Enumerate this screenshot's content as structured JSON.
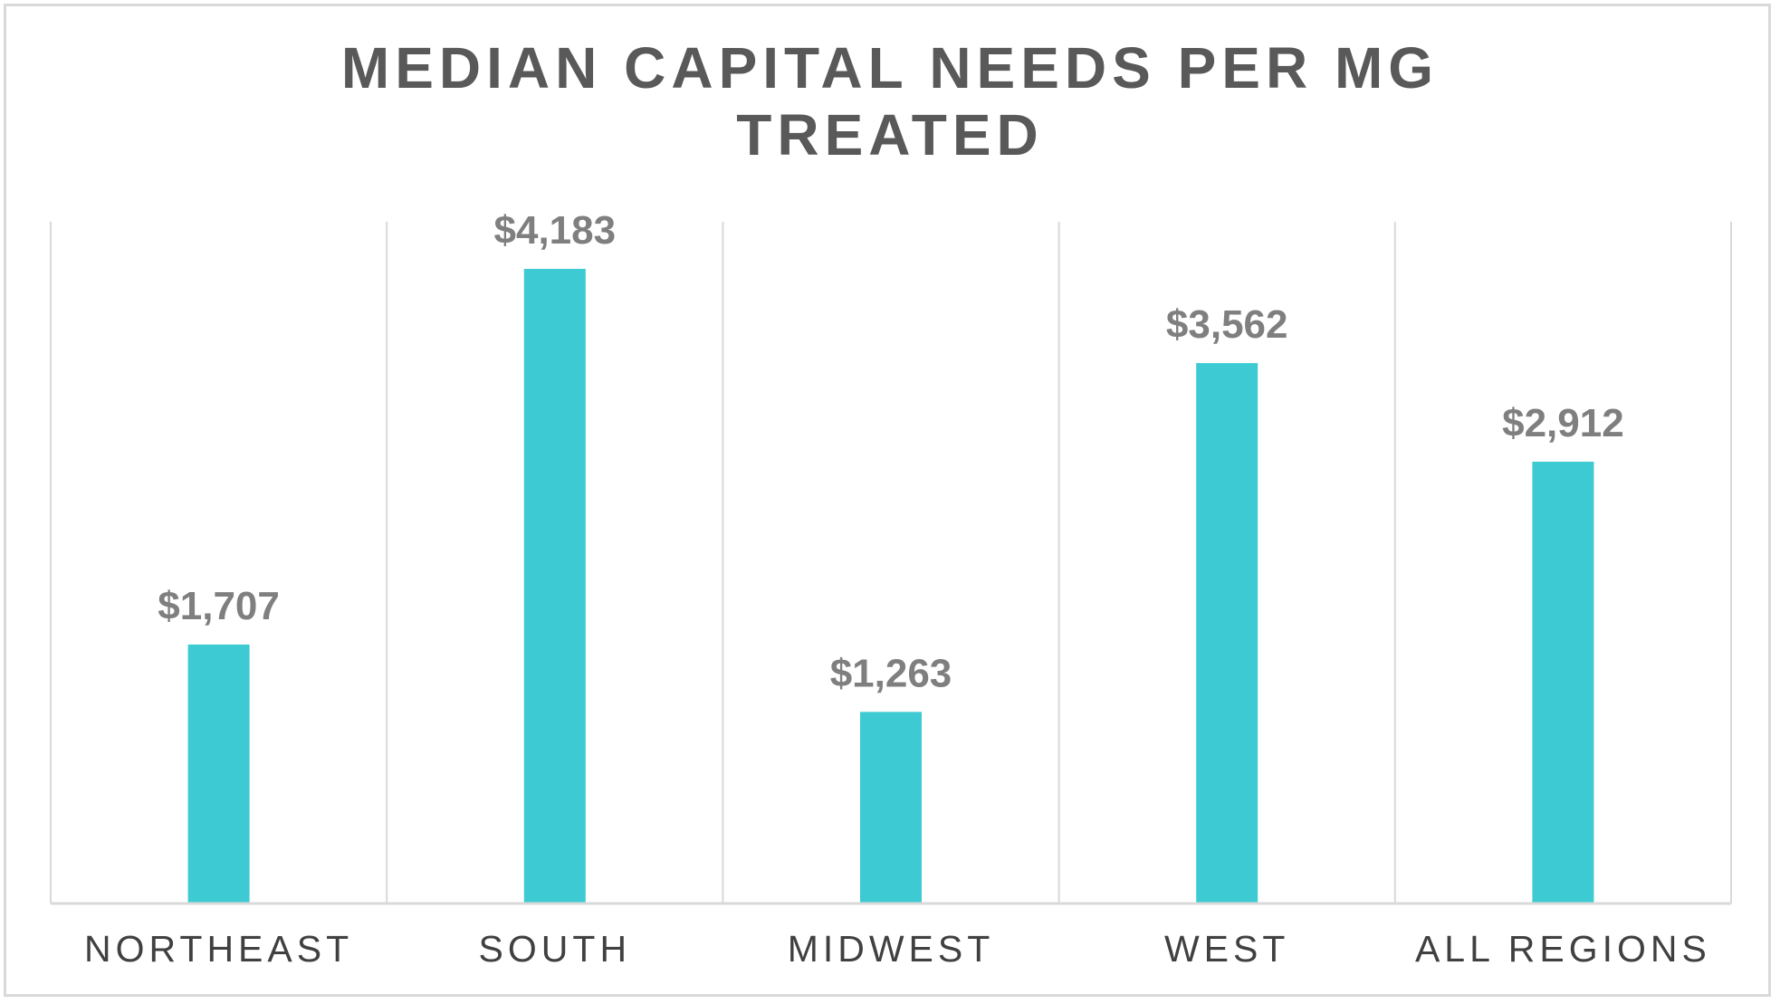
{
  "chart_data": {
    "type": "bar",
    "title_lines": [
      "MEDIAN CAPITAL NEEDS PER MG",
      "TREATED"
    ],
    "categories": [
      "NORTHEAST",
      "SOUTH",
      "MIDWEST",
      "WEST",
      "ALL REGIONS"
    ],
    "values": [
      1707,
      4183,
      1263,
      3562,
      2912
    ],
    "data_labels": [
      "$1,707",
      "$4,183",
      "$1,263",
      "$3,562",
      "$2,912"
    ],
    "ylim": [
      0,
      4600
    ],
    "xlabel": "",
    "ylabel": "",
    "grid": "vertical category separators",
    "legend": "none",
    "bar_color": "#3ecad3"
  }
}
